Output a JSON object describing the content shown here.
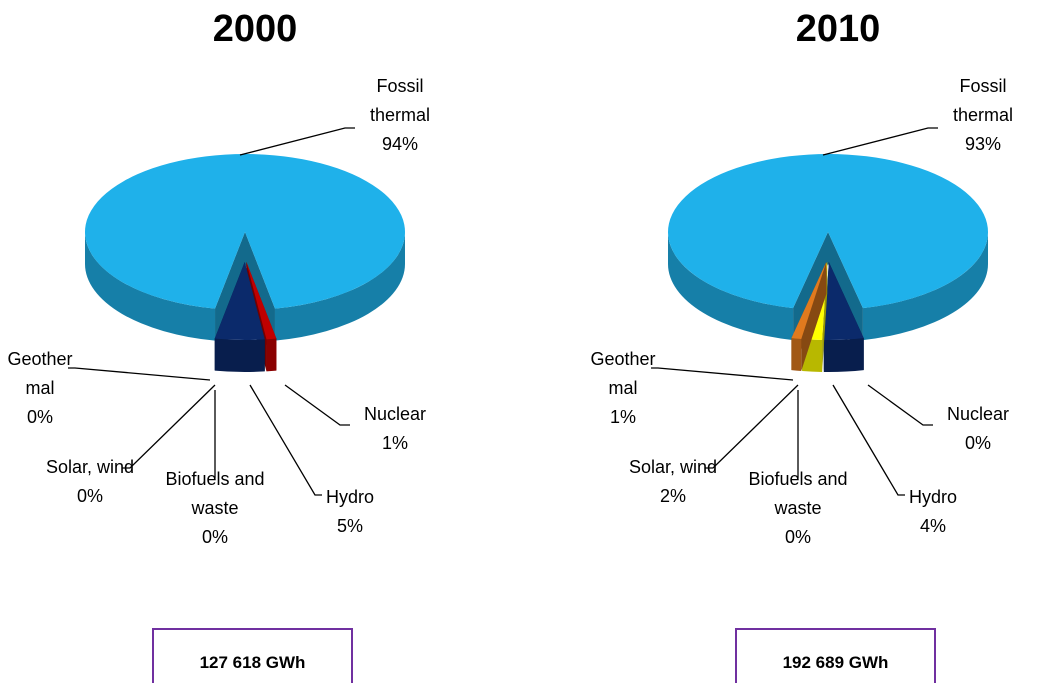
{
  "chart_data": [
    {
      "type": "pie",
      "title": "2000",
      "categories": [
        "Fossil thermal",
        "Nuclear",
        "Hydro",
        "Biofuels and waste",
        "Solar, wind",
        "Geothermal"
      ],
      "values": [
        94,
        1,
        5,
        0,
        0,
        0
      ],
      "value_labels": [
        "94%",
        "1%",
        "5%",
        "0%",
        "0%",
        "0%"
      ],
      "colors": [
        "#1fb1ea",
        "#c00000",
        "#0b2a6b",
        "#7a5aa8",
        "#ffff00",
        "#e07a1e"
      ],
      "total": "127 618 GWh"
    },
    {
      "type": "pie",
      "title": "2010",
      "categories": [
        "Fossil thermal",
        "Nuclear",
        "Hydro",
        "Biofuels and waste",
        "Solar, wind",
        "Geothermal"
      ],
      "values": [
        93,
        0,
        4,
        0,
        2,
        1
      ],
      "value_labels": [
        "93%",
        "0%",
        "4%",
        "0%",
        "2%",
        "1%"
      ],
      "colors": [
        "#1fb1ea",
        "#c00000",
        "#0b2a6b",
        "#7a5aa8",
        "#ffff00",
        "#e07a1e"
      ],
      "total": "192 689 GWh"
    }
  ]
}
